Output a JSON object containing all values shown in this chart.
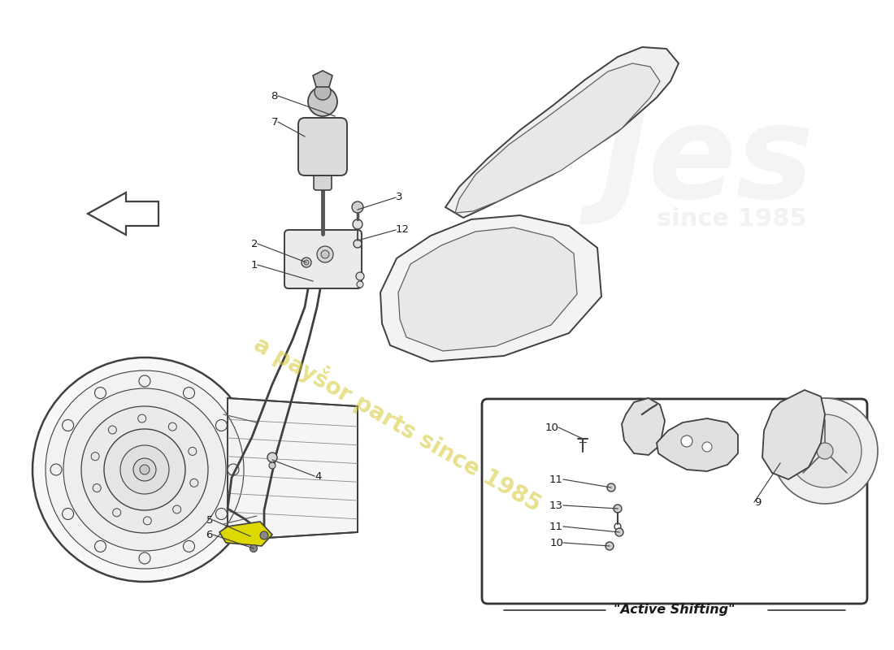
{
  "background": "#ffffff",
  "lc": "#404040",
  "lc_light": "#888888",
  "lc_med": "#606060",
  "tc": "#1a1a1a",
  "wm_color": "#d4c830",
  "wm_alpha": 0.55,
  "wm_text": "a payṧor parts since 1985",
  "logo_alpha": 0.13,
  "highlight": "#e8e840",
  "active_label": "\"Active Shifting\"",
  "figsize": [
    11.0,
    8.0
  ],
  "dpi": 100,
  "label_fs": 9.5
}
